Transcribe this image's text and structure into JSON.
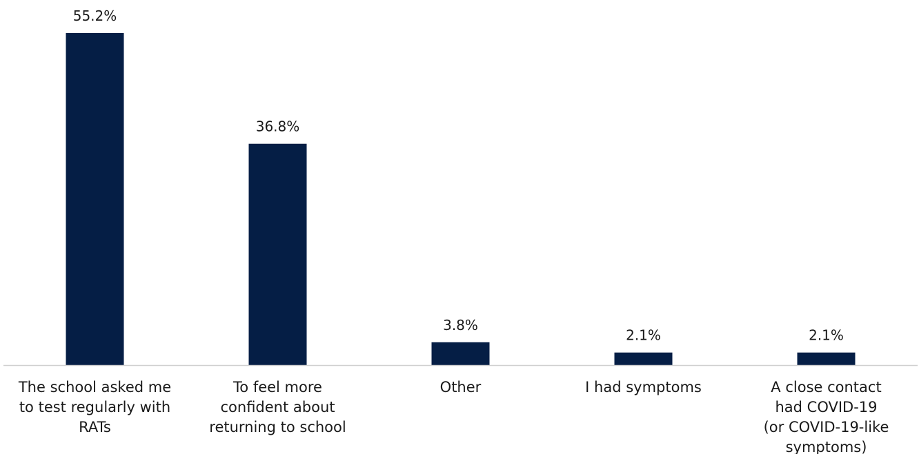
{
  "chart_data": {
    "type": "bar",
    "title": "",
    "xlabel": "",
    "ylabel": "",
    "ylim": [
      0,
      55.2
    ],
    "grid": false,
    "legend": "none",
    "categories": [
      [
        "The school asked me",
        "to test regularly with",
        "RATs"
      ],
      [
        "To feel more",
        "confident about",
        "returning to school"
      ],
      [
        "Other"
      ],
      [
        "I had symptoms"
      ],
      [
        "A close contact",
        "had COVID-19",
        "(or COVID-19-like",
        "symptoms)"
      ]
    ],
    "values": [
      55.2,
      36.8,
      3.8,
      2.1,
      2.1
    ],
    "data_labels": [
      "55.2%",
      "36.8%",
      "3.8%",
      "2.1%",
      "2.1%"
    ],
    "colors": {
      "bar": "#051e45",
      "axis": "#d0d0d0",
      "text": "#1a1a1a"
    }
  }
}
